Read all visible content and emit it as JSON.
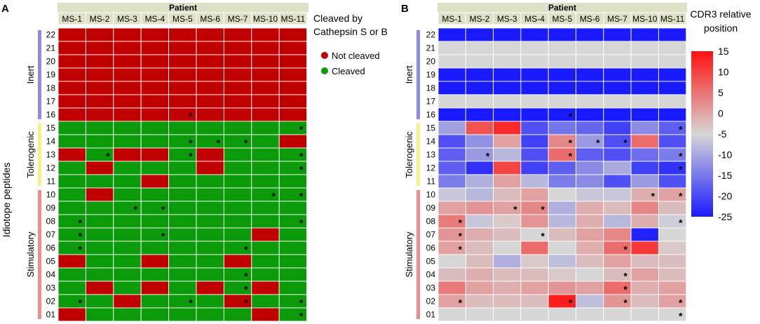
{
  "chart_data": [
    {
      "type": "heatmap",
      "panel_label": "A",
      "title": "Patient",
      "ylabel": "Idiotope peptides",
      "columns": [
        "MS-1",
        "MS-2",
        "MS-3",
        "MS-4",
        "MS-5",
        "MS-6",
        "MS-7",
        "MS-10",
        "MS-11"
      ],
      "rows": [
        "22",
        "21",
        "20",
        "19",
        "18",
        "17",
        "16",
        "15",
        "14",
        "13",
        "12",
        "11",
        "10",
        "09",
        "08",
        "07",
        "06",
        "05",
        "04",
        "03",
        "02",
        "01"
      ],
      "groups": [
        {
          "name": "Inert",
          "from": 0,
          "to": 6,
          "color": "#8c8ce8"
        },
        {
          "name": "Tolerogenic",
          "from": 7,
          "to": 11,
          "color": "#f3f38a"
        },
        {
          "name": "Stimulatory",
          "from": 12,
          "to": 21,
          "color": "#f08c8c"
        }
      ],
      "legend": {
        "title": "Cleaved by Cathepsin S or B",
        "items": [
          {
            "label": "Not cleaved",
            "color": "#c00000",
            "value": 0
          },
          {
            "label": "Cleaved",
            "color": "#0a9a0a",
            "value": 1
          }
        ]
      },
      "values": [
        [
          0,
          0,
          0,
          0,
          0,
          0,
          0,
          0,
          0
        ],
        [
          0,
          0,
          0,
          0,
          0,
          0,
          0,
          0,
          0
        ],
        [
          0,
          0,
          0,
          0,
          0,
          0,
          0,
          0,
          0
        ],
        [
          0,
          0,
          0,
          0,
          0,
          0,
          0,
          0,
          0
        ],
        [
          0,
          0,
          0,
          0,
          0,
          0,
          0,
          0,
          0
        ],
        [
          0,
          0,
          0,
          0,
          0,
          0,
          0,
          0,
          0
        ],
        [
          0,
          0,
          0,
          0,
          0,
          0,
          0,
          0,
          0
        ],
        [
          1,
          1,
          1,
          1,
          1,
          1,
          1,
          1,
          1
        ],
        [
          1,
          1,
          1,
          1,
          1,
          1,
          1,
          1,
          0
        ],
        [
          0,
          1,
          0,
          0,
          1,
          0,
          1,
          1,
          1
        ],
        [
          1,
          0,
          1,
          1,
          1,
          0,
          1,
          1,
          1
        ],
        [
          1,
          1,
          1,
          0,
          1,
          1,
          1,
          1,
          1
        ],
        [
          1,
          0,
          1,
          1,
          1,
          1,
          1,
          1,
          1
        ],
        [
          1,
          1,
          1,
          1,
          1,
          1,
          1,
          1,
          1
        ],
        [
          1,
          1,
          1,
          1,
          1,
          1,
          1,
          1,
          1
        ],
        [
          1,
          1,
          1,
          1,
          1,
          1,
          1,
          0,
          1
        ],
        [
          1,
          1,
          1,
          1,
          1,
          1,
          1,
          1,
          1
        ],
        [
          0,
          1,
          1,
          0,
          1,
          1,
          0,
          1,
          1
        ],
        [
          1,
          1,
          1,
          1,
          1,
          1,
          1,
          1,
          1
        ],
        [
          1,
          0,
          1,
          0,
          1,
          0,
          1,
          0,
          1
        ],
        [
          1,
          1,
          0,
          1,
          1,
          1,
          0,
          1,
          1
        ],
        [
          0,
          1,
          1,
          1,
          1,
          1,
          1,
          0,
          1
        ]
      ],
      "asterisks": [
        [
          6,
          4
        ],
        [
          7,
          8
        ],
        [
          8,
          4
        ],
        [
          8,
          5
        ],
        [
          8,
          6
        ],
        [
          9,
          1
        ],
        [
          9,
          4
        ],
        [
          9,
          8
        ],
        [
          10,
          8
        ],
        [
          12,
          7
        ],
        [
          12,
          8
        ],
        [
          13,
          2
        ],
        [
          13,
          3
        ],
        [
          14,
          0
        ],
        [
          14,
          8
        ],
        [
          15,
          0
        ],
        [
          15,
          3
        ],
        [
          16,
          0
        ],
        [
          16,
          6
        ],
        [
          18,
          6
        ],
        [
          19,
          6
        ],
        [
          20,
          0
        ],
        [
          20,
          4
        ],
        [
          20,
          6
        ],
        [
          20,
          8
        ],
        [
          21,
          8
        ]
      ]
    },
    {
      "type": "heatmap",
      "panel_label": "B",
      "title": "Patient",
      "columns": [
        "MS-1",
        "MS-2",
        "MS-3",
        "MS-4",
        "MS-5",
        "MS-6",
        "MS-7",
        "MS-10",
        "MS-11"
      ],
      "rows": [
        "22",
        "21",
        "20",
        "19",
        "18",
        "17",
        "16",
        "15",
        "14",
        "13",
        "12",
        "11",
        "10",
        "09",
        "08",
        "07",
        "06",
        "05",
        "04",
        "03",
        "02",
        "01"
      ],
      "groups": [
        {
          "name": "Inert",
          "from": 0,
          "to": 6,
          "color": "#8c8ce8"
        },
        {
          "name": "Tolerogenic",
          "from": 7,
          "to": 11,
          "color": "#f3f38a"
        },
        {
          "name": "Stimulatory",
          "from": 12,
          "to": 21,
          "color": "#f08c8c"
        }
      ],
      "colorbar": {
        "title": "CDR3 relative position",
        "min": -25,
        "max": 15,
        "ticks": [
          "15",
          "10",
          "5",
          "0",
          "-5",
          "-10",
          "-15",
          "-20",
          "-25"
        ]
      },
      "values": [
        [
          -25,
          -25,
          -25,
          -25,
          -25,
          -25,
          -25,
          -25,
          -25
        ],
        [
          0,
          0,
          0,
          0,
          0,
          0,
          0,
          0,
          0
        ],
        [
          0,
          0,
          0,
          0,
          0,
          0,
          0,
          0,
          0
        ],
        [
          -25,
          -25,
          -25,
          -25,
          -25,
          -25,
          -25,
          -25,
          -25
        ],
        [
          -25,
          -25,
          -25,
          -25,
          -25,
          -25,
          -25,
          -25,
          -25
        ],
        [
          0,
          0,
          0,
          0,
          0,
          0,
          0,
          0,
          0
        ],
        [
          -25,
          -25,
          -25,
          -25,
          -25,
          -25,
          -25,
          -25,
          -25
        ],
        [
          -7,
          10,
          13,
          -18,
          -13,
          -15,
          -20,
          -10,
          -16
        ],
        [
          -18,
          -9,
          4,
          -20,
          6,
          -8,
          -18,
          8,
          -18
        ],
        [
          -16,
          -8,
          -4,
          -18,
          8,
          -16,
          -18,
          -14,
          -12
        ],
        [
          -16,
          -22,
          11,
          -20,
          -16,
          -10,
          -6,
          -20,
          -22
        ],
        [
          -12,
          -5,
          4,
          -4,
          -12,
          -10,
          -18,
          -8,
          -18
        ],
        [
          -2,
          -4,
          2,
          4,
          0,
          -2,
          -2,
          3,
          4
        ],
        [
          4,
          5,
          4,
          6,
          -5,
          3,
          2,
          6,
          2
        ],
        [
          7,
          -2,
          1,
          5,
          -4,
          3,
          -4,
          3,
          -1
        ],
        [
          5,
          3,
          2,
          0,
          2,
          4,
          6,
          -24,
          0
        ],
        [
          4,
          2,
          0,
          8,
          0,
          3,
          8,
          12,
          1
        ],
        [
          0,
          2,
          -5,
          1,
          -3,
          2,
          4,
          2,
          2
        ],
        [
          2,
          3,
          2,
          2,
          1,
          0,
          2,
          4,
          2
        ],
        [
          7,
          4,
          3,
          4,
          5,
          4,
          8,
          3,
          4
        ],
        [
          4,
          2,
          2,
          2,
          14,
          -3,
          5,
          2,
          4
        ],
        [
          0,
          0,
          0,
          0,
          0,
          0,
          0,
          0,
          0
        ]
      ],
      "asterisks": [
        [
          6,
          4
        ],
        [
          7,
          8
        ],
        [
          8,
          4
        ],
        [
          8,
          5
        ],
        [
          8,
          6
        ],
        [
          9,
          1
        ],
        [
          9,
          4
        ],
        [
          9,
          8
        ],
        [
          10,
          8
        ],
        [
          12,
          7
        ],
        [
          12,
          8
        ],
        [
          13,
          2
        ],
        [
          13,
          3
        ],
        [
          14,
          0
        ],
        [
          14,
          8
        ],
        [
          15,
          0
        ],
        [
          15,
          3
        ],
        [
          16,
          0
        ],
        [
          16,
          6
        ],
        [
          18,
          6
        ],
        [
          19,
          6
        ],
        [
          20,
          0
        ],
        [
          20,
          4
        ],
        [
          20,
          6
        ],
        [
          20,
          8
        ],
        [
          21,
          8
        ]
      ]
    }
  ]
}
